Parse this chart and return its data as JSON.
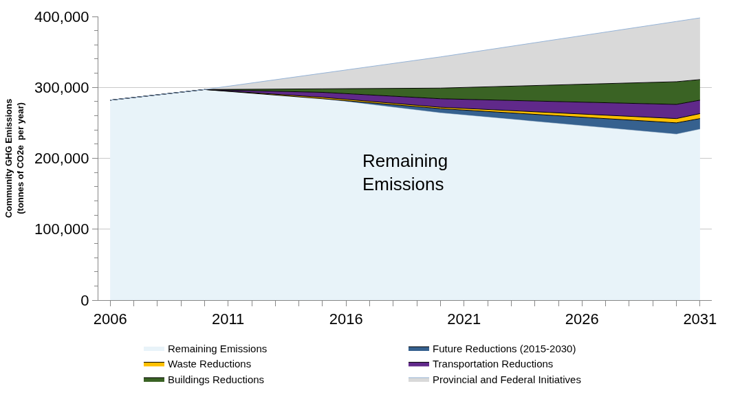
{
  "chart_data": {
    "type": "area",
    "stacked": true,
    "ylabel": "Community GHG Emissions\n(tonnes of CO2e  per year)",
    "x": [
      2006,
      2010,
      2015,
      2020,
      2030,
      2031
    ],
    "series": [
      {
        "name": "Remaining Emissions",
        "color": "#e8f3f9",
        "values": [
          282000,
          297000,
          284000,
          264000,
          234000,
          241000
        ]
      },
      {
        "name": "Future Reductions (2015-2030)",
        "color": "#36618f",
        "values": [
          0,
          0,
          0,
          6000,
          16000,
          15000
        ]
      },
      {
        "name": "Waste Reductions",
        "color": "#ffc000",
        "values": [
          0,
          0,
          2000,
          2000,
          6000,
          7000
        ]
      },
      {
        "name": "Transportation Reductions",
        "color": "#60298a",
        "values": [
          0,
          0,
          7000,
          12000,
          20000,
          19000
        ]
      },
      {
        "name": "Buildings Reductions",
        "color": "#3a6324",
        "values": [
          0,
          0,
          5000,
          15000,
          32000,
          29000
        ]
      },
      {
        "name": "Provincial and Federal Initiatives",
        "color": "#d9d9d9",
        "values": [
          0,
          0,
          22000,
          44000,
          85000,
          87000
        ]
      }
    ],
    "annotations": [
      "Remaining\nEmissions"
    ],
    "xlim": [
      2005.5,
      2031.5
    ],
    "xticks": [
      2006,
      {
        "value": 2007,
        "label": null
      },
      {
        "value": 2008,
        "label": null
      },
      {
        "value": 2009,
        "label": null
      },
      {
        "value": 2010,
        "label": null
      },
      2011,
      {
        "value": 2012,
        "label": null
      },
      {
        "value": 2013,
        "label": null
      },
      {
        "value": 2014,
        "label": null
      },
      {
        "value": 2015,
        "label": null
      },
      2016,
      {
        "value": 2017,
        "label": null
      },
      {
        "value": 2018,
        "label": null
      },
      {
        "value": 2019,
        "label": null
      },
      {
        "value": 2020,
        "label": null
      },
      2021,
      {
        "value": 2022,
        "label": null
      },
      {
        "value": 2023,
        "label": null
      },
      {
        "value": 2024,
        "label": null
      },
      {
        "value": 2025,
        "label": null
      },
      2026,
      {
        "value": 2027,
        "label": null
      },
      {
        "value": 2028,
        "label": null
      },
      {
        "value": 2029,
        "label": null
      },
      {
        "value": 2030,
        "label": null
      },
      2031
    ],
    "ylim": [
      0,
      400000
    ],
    "yticks": [
      {
        "value": 0,
        "label": "0"
      },
      {
        "value": 100000,
        "label": "100,000"
      },
      {
        "value": 200000,
        "label": "200,000"
      },
      {
        "value": 300000,
        "label": "300,000"
      },
      {
        "value": 400000,
        "label": "400,000"
      }
    ],
    "grid": "y",
    "legend": "bottom"
  }
}
